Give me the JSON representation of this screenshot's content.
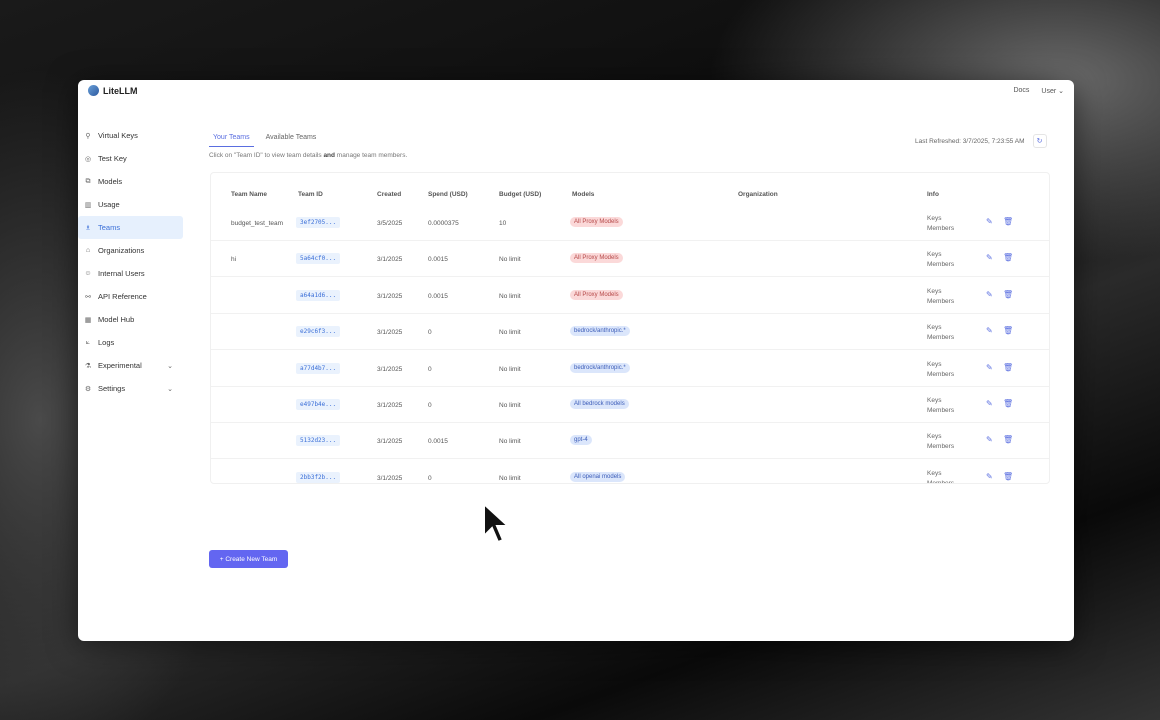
{
  "app": {
    "title": "LiteLLM",
    "docs": "Docs",
    "user": "User"
  },
  "sidebar": {
    "items": [
      {
        "label": "Virtual Keys",
        "icon": "key-icon"
      },
      {
        "label": "Test Key",
        "icon": "play-icon"
      },
      {
        "label": "Models",
        "icon": "block-icon"
      },
      {
        "label": "Usage",
        "icon": "bar-chart-icon"
      },
      {
        "label": "Teams",
        "icon": "team-icon",
        "active": true
      },
      {
        "label": "Organizations",
        "icon": "bank-icon"
      },
      {
        "label": "Internal Users",
        "icon": "user-icon"
      },
      {
        "label": "API Reference",
        "icon": "api-icon"
      },
      {
        "label": "Model Hub",
        "icon": "apps-icon"
      },
      {
        "label": "Logs",
        "icon": "line-chart-icon"
      },
      {
        "label": "Experimental",
        "icon": "experiment-icon",
        "expandable": true
      },
      {
        "label": "Settings",
        "icon": "settings-icon",
        "expandable": true
      }
    ]
  },
  "tabs": [
    {
      "label": "Your Teams",
      "active": true
    },
    {
      "label": "Available Teams"
    }
  ],
  "hint": {
    "pre": "Click on \"Team ID\" to view team details ",
    "bold": "and",
    "post": " manage team members."
  },
  "refresh": {
    "label": "Last Refreshed: 3/7/2025, 7:23:55 AM"
  },
  "table": {
    "headers": [
      "Team Name",
      "Team ID",
      "Created",
      "Spend (USD)",
      "Budget (USD)",
      "Models",
      "Organization",
      "Info"
    ],
    "rows": [
      {
        "name": "budget_test_team",
        "id": "3ef2705...",
        "created": "3/5/2025",
        "spend": "0.0000375",
        "budget": "10",
        "model": "All Proxy Models",
        "color": "red",
        "info1": "Keys",
        "info2": "Members"
      },
      {
        "name": "hi",
        "id": "5a64cf0...",
        "created": "3/1/2025",
        "spend": "0.0015",
        "budget": "No limit",
        "model": "All Proxy Models",
        "color": "red",
        "info1": "Keys",
        "info2": "Members"
      },
      {
        "name": "",
        "id": "a64a1d6...",
        "created": "3/1/2025",
        "spend": "0.0015",
        "budget": "No limit",
        "model": "All Proxy Models",
        "color": "red",
        "info1": "Keys",
        "info2": "Members"
      },
      {
        "name": "",
        "id": "e29c6f3...",
        "created": "3/1/2025",
        "spend": "0",
        "budget": "No limit",
        "model": "bedrock/anthropic.*",
        "color": "blue",
        "info1": "Keys",
        "info2": "Members"
      },
      {
        "name": "",
        "id": "a77d4b7...",
        "created": "3/1/2025",
        "spend": "0",
        "budget": "No limit",
        "model": "bedrock/anthropic.*",
        "color": "blue",
        "info1": "Keys",
        "info2": "Members"
      },
      {
        "name": "",
        "id": "e497b4e...",
        "created": "3/1/2025",
        "spend": "0",
        "budget": "No limit",
        "model": "All bedrock models",
        "color": "blue",
        "info1": "Keys",
        "info2": "Members"
      },
      {
        "name": "",
        "id": "5132d23...",
        "created": "3/1/2025",
        "spend": "0.0015",
        "budget": "No limit",
        "model": "gpt-4",
        "color": "blue",
        "info1": "Keys",
        "info2": "Members"
      },
      {
        "name": "",
        "id": "2bb3f2b...",
        "created": "3/1/2025",
        "spend": "0",
        "budget": "No limit",
        "model": "All openai models",
        "color": "blue",
        "info1": "Keys",
        "info2": "Members"
      }
    ]
  },
  "create_button": "+ Create New Team"
}
